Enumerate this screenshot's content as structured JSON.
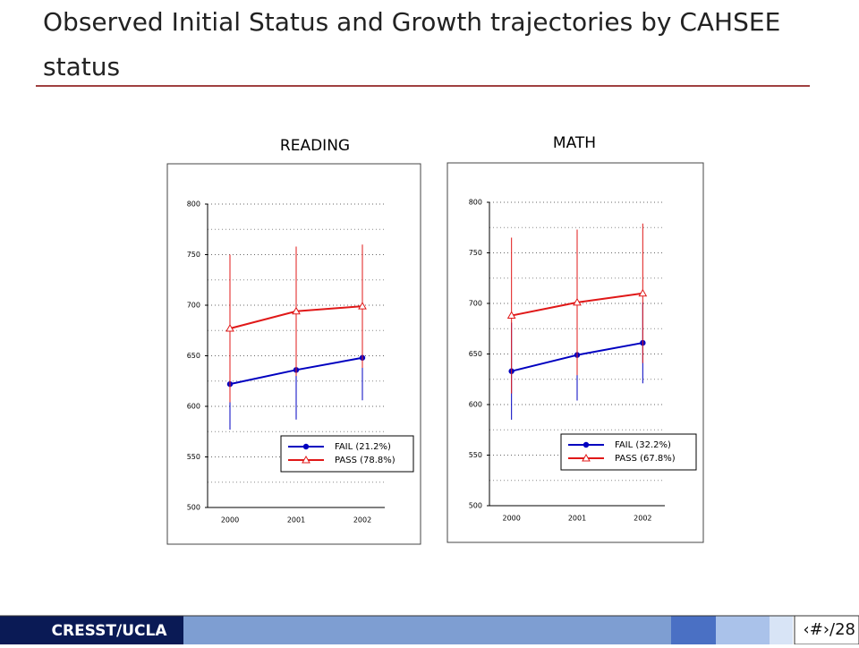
{
  "slide": {
    "title": "Observed Initial Status and Growth trajectories by CAHSEE status",
    "footer": "CRESST/UCLA",
    "page": "‹#›/28"
  },
  "chart_data": [
    {
      "type": "line",
      "title": "READING",
      "categories": [
        "2000",
        "2001",
        "2002"
      ],
      "series": [
        {
          "name": "FAIL (21.2%)",
          "color": "#0000c0",
          "marker": "circle",
          "values": [
            622,
            636,
            648
          ],
          "errors": [
            45,
            49,
            42
          ]
        },
        {
          "name": "PASS (78.8%)",
          "color": "#e01818",
          "marker": "triangle",
          "values": [
            677,
            694,
            699
          ],
          "errors": [
            73,
            64,
            61
          ]
        }
      ],
      "ylim": [
        500,
        800
      ],
      "yticks": [
        500,
        550,
        600,
        650,
        700,
        750,
        800
      ],
      "grid": true,
      "legend": "lower right"
    },
    {
      "type": "line",
      "title": "MATH",
      "categories": [
        "2000",
        "2001",
        "2002"
      ],
      "series": [
        {
          "name": "FAIL (32.2%)",
          "color": "#0000c0",
          "marker": "circle",
          "values": [
            633,
            649,
            661
          ],
          "errors": [
            48,
            45,
            40
          ]
        },
        {
          "name": "PASS (67.8%)",
          "color": "#e01818",
          "marker": "triangle",
          "values": [
            688,
            701,
            710
          ],
          "errors": [
            77,
            72,
            69
          ]
        }
      ],
      "ylim": [
        500,
        800
      ],
      "yticks": [
        500,
        550,
        600,
        650,
        700,
        750,
        800
      ],
      "grid": true,
      "legend": "lower right"
    }
  ]
}
